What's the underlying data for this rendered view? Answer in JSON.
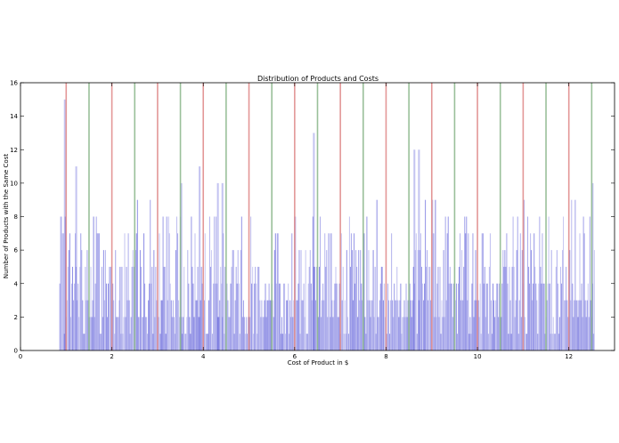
{
  "chart_data": {
    "type": "histogram",
    "title": "Distribution of Products and Costs",
    "xlabel": "Cost of Product in $",
    "ylabel": "Number of Products with the Same Cost",
    "xlim": [
      0,
      13
    ],
    "ylim": [
      0,
      16
    ],
    "x_ticks": [
      0,
      2,
      4,
      6,
      8,
      10,
      12
    ],
    "y_ticks": [
      0,
      2,
      4,
      6,
      8,
      10,
      12,
      14,
      16
    ],
    "bar_color": "#3b3bd1",
    "grid": false,
    "bin_range": [
      0.85,
      12.55
    ],
    "bin_width": 0.02,
    "notable_peaks": [
      {
        "x": 0.95,
        "y": 15
      },
      {
        "x": 1.2,
        "y": 11
      },
      {
        "x": 3.5,
        "y": 10
      },
      {
        "x": 3.9,
        "y": 11
      },
      {
        "x": 4.3,
        "y": 10
      },
      {
        "x": 4.4,
        "y": 10
      },
      {
        "x": 6.4,
        "y": 13
      },
      {
        "x": 8.6,
        "y": 12
      },
      {
        "x": 8.7,
        "y": 12
      },
      {
        "x": 12.5,
        "y": 10
      }
    ],
    "vertical_lines": {
      "red": {
        "color": "#e08c8c",
        "x": [
          1,
          2,
          3,
          4,
          5,
          6,
          7,
          8,
          9,
          10,
          11,
          12
        ]
      },
      "green": {
        "color": "#8fb98f",
        "x": [
          1.5,
          2.5,
          3.5,
          4.5,
          5.5,
          6.5,
          7.5,
          8.5,
          9.5,
          10.5,
          11.5,
          12.5
        ]
      }
    }
  }
}
